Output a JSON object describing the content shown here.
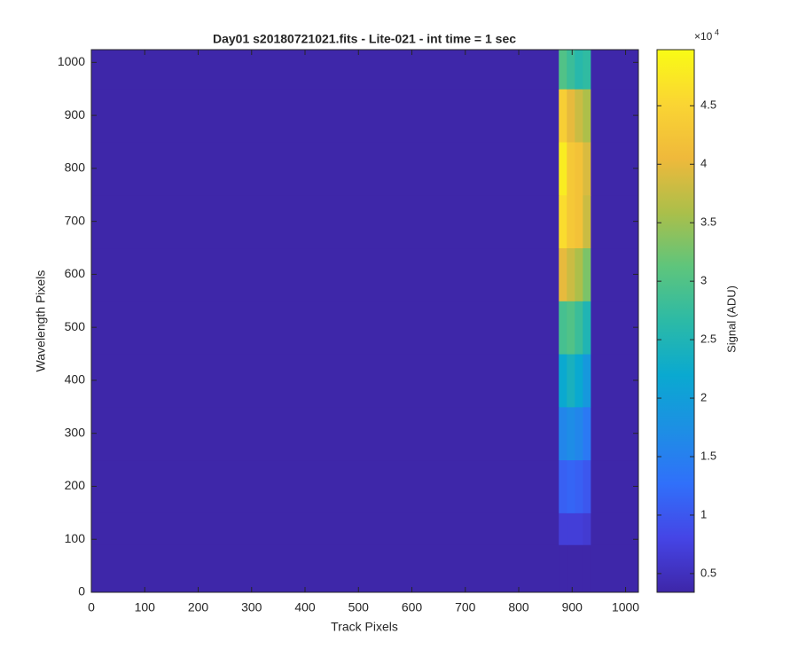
{
  "chart_data": {
    "type": "heatmap",
    "title": "Day01  s20180721021.fits - Lite-021 - int time = 1 sec",
    "x_label": "Track Pixels",
    "y_label": "Wavelength Pixels",
    "x_edges": [
      0,
      875,
      890,
      905,
      920,
      935,
      1024
    ],
    "y_edges": [
      0,
      90,
      150,
      250,
      350,
      450,
      550,
      650,
      750,
      850,
      950,
      1024
    ],
    "values": [
      [
        3500,
        3500,
        3500,
        3500,
        3500,
        3500
      ],
      [
        3500,
        7000,
        7000,
        7000,
        6500,
        3500
      ],
      [
        3500,
        11000,
        11500,
        11000,
        10000,
        3500
      ],
      [
        3500,
        16000,
        17000,
        16000,
        14000,
        3500
      ],
      [
        3500,
        22000,
        24000,
        22000,
        19000,
        3500
      ],
      [
        3500,
        29000,
        30000,
        28000,
        25000,
        3500
      ],
      [
        3500,
        40000,
        38000,
        36000,
        33000,
        3500
      ],
      [
        3500,
        46000,
        43000,
        42000,
        38000,
        3500
      ],
      [
        3500,
        48000,
        43000,
        42000,
        39000,
        3500
      ],
      [
        3500,
        44000,
        40000,
        38000,
        36000,
        3500
      ],
      [
        3500,
        30000,
        28000,
        26000,
        27000,
        3500
      ]
    ],
    "xlim": [
      0,
      1024
    ],
    "ylim": [
      0,
      1024
    ],
    "xticks": [
      0,
      100,
      200,
      300,
      400,
      500,
      600,
      700,
      800,
      900,
      1000
    ],
    "yticks": [
      0,
      100,
      200,
      300,
      400,
      500,
      600,
      700,
      800,
      900,
      1000
    ],
    "colormap": "parula",
    "clim": [
      3400,
      49800
    ],
    "cticks": [
      {
        "value": 5000,
        "label": "0.5"
      },
      {
        "value": 10000,
        "label": "1"
      },
      {
        "value": 15000,
        "label": "1.5"
      },
      {
        "value": 20000,
        "label": "2"
      },
      {
        "value": 25000,
        "label": "2.5"
      },
      {
        "value": 30000,
        "label": "3"
      },
      {
        "value": 35000,
        "label": "3.5"
      },
      {
        "value": 40000,
        "label": "4"
      },
      {
        "value": 45000,
        "label": "4.5"
      }
    ],
    "colorbar_multiplier": {
      "base": "×10",
      "power": "4"
    },
    "colorbar_label": "Signal (ADU)"
  }
}
